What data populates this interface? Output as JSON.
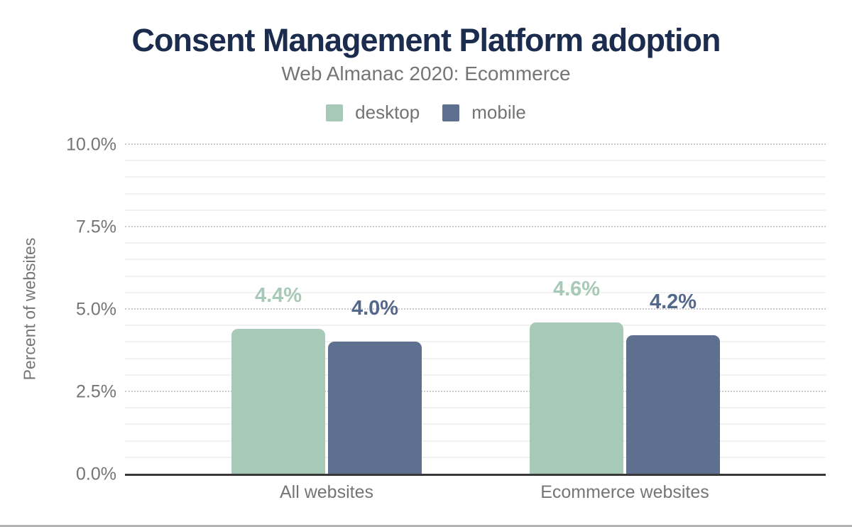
{
  "chart_data": {
    "type": "bar",
    "title": "Consent Management Platform adoption",
    "subtitle": "Web Almanac 2020: Ecommerce",
    "ylabel": "Percent of websites",
    "xlabel": "",
    "categories": [
      "All websites",
      "Ecommerce websites"
    ],
    "series": [
      {
        "name": "desktop",
        "color": "#a7c9b8",
        "label_color": "#a7c9b8",
        "values": [
          4.4,
          4.6
        ],
        "value_labels": [
          "4.4%",
          "4.6%"
        ]
      },
      {
        "name": "mobile",
        "color": "#5d7090",
        "label_color": "#54688c",
        "values": [
          4.0,
          4.2
        ],
        "value_labels": [
          "4.0%",
          "4.2%"
        ]
      }
    ],
    "y_axis": {
      "ylim": [
        0,
        10
      ],
      "major_step": 2.5,
      "minor_step": 0.5,
      "ticks": [
        {
          "value": 0,
          "label": "0.0%"
        },
        {
          "value": 2.5,
          "label": "2.5%"
        },
        {
          "value": 5,
          "label": "5.0%"
        },
        {
          "value": 7.5,
          "label": "7.5%"
        },
        {
          "value": 10,
          "label": "10.0%"
        }
      ]
    },
    "legend_position": "top",
    "grid": true,
    "colors": {
      "title": "#1b2c4e",
      "text": "#757575",
      "axis_line": "#383838",
      "gridline_minor": "#f2f2f2",
      "gridline_major": "#cccccc"
    }
  }
}
